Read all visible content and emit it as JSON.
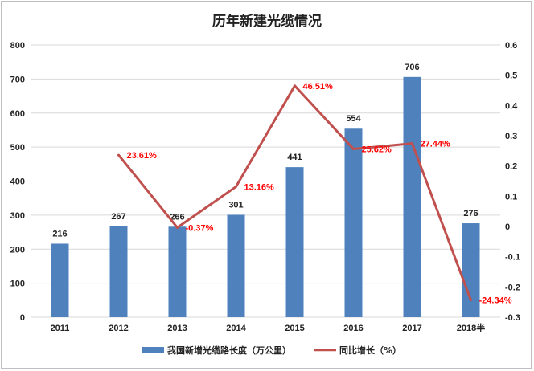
{
  "colors": {
    "bar": "#4f81bd",
    "line": "#c0504d",
    "line_label": "#ff0000",
    "grid": "#d9d9d9",
    "axis_text": "#222222"
  },
  "chart_data": {
    "type": "bar",
    "title": "历年新建光缆情况",
    "categories": [
      "2011",
      "2012",
      "2013",
      "2014",
      "2015",
      "2016",
      "2017",
      "2018半"
    ],
    "series": [
      {
        "name": "我国新增光缆路长度（万公里）",
        "type": "bar",
        "axis": "left",
        "values": [
          216,
          267,
          266,
          301,
          441,
          554,
          706,
          276
        ],
        "labels": [
          "216",
          "267",
          "266",
          "301",
          "441",
          "554",
          "706",
          "276"
        ]
      },
      {
        "name": "同比增长（%）",
        "type": "line",
        "axis": "right",
        "values": [
          null,
          0.2361,
          -0.0037,
          0.1316,
          0.4651,
          0.2562,
          0.2744,
          -0.2434
        ],
        "labels": [
          "",
          "23.61%",
          "-0.37%",
          "13.16%",
          "46.51%",
          "25.62%",
          "27.44%",
          "-24.34%"
        ]
      }
    ],
    "y_left": {
      "range": [
        0,
        800
      ],
      "ticks": [
        "0",
        "100",
        "200",
        "300",
        "400",
        "500",
        "600",
        "700",
        "800"
      ]
    },
    "y_right": {
      "range": [
        -0.3,
        0.6
      ],
      "ticks": [
        "-0.3",
        "-0.2",
        "-0.1",
        "0",
        "0.1",
        "0.2",
        "0.3",
        "0.4",
        "0.5",
        "0.6"
      ]
    },
    "grid": true,
    "legend_position": "bottom"
  }
}
